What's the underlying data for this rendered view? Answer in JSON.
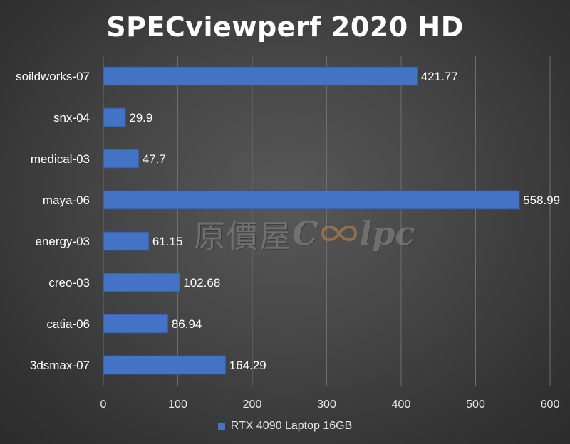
{
  "colors": {
    "bar_fill": "#4472c4",
    "bar_stroke": "#2f5597",
    "text": "#ffffff",
    "grid": "#6e6e6e"
  },
  "watermark": {
    "cjk": "原價屋",
    "latin_left": "C",
    "latin_right": "lpc"
  },
  "chart_data": {
    "type": "bar",
    "orientation": "horizontal",
    "title": "SPECviewperf 2020 HD",
    "xlabel": "",
    "ylabel": "",
    "categories": [
      "soildworks-07",
      "snx-04",
      "medical-03",
      "maya-06",
      "energy-03",
      "creo-03",
      "catia-06",
      "3dsmax-07"
    ],
    "series": [
      {
        "name": "RTX 4090 Laptop 16GB",
        "values": [
          421.77,
          29.9,
          47.7,
          558.99,
          61.15,
          102.68,
          86.94,
          164.29
        ],
        "labels": [
          "421.77",
          "29.9",
          "47.7",
          "558.99",
          "61.15",
          "102.68",
          "86.94",
          "164.29"
        ]
      }
    ],
    "xlim": [
      0,
      600
    ],
    "xticks": [
      0,
      100,
      200,
      300,
      400,
      500,
      600
    ],
    "xtick_labels": [
      "0",
      "100",
      "200",
      "300",
      "400",
      "500",
      "600"
    ],
    "grid": "vertical",
    "legend": "bottom"
  }
}
